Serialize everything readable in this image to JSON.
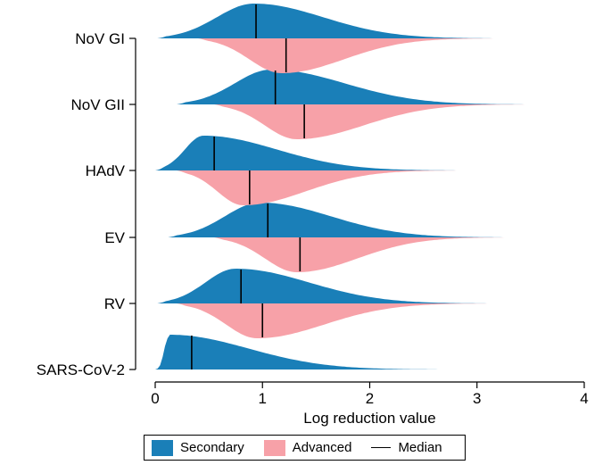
{
  "chart_data": {
    "type": "split-violin",
    "title": "",
    "xlabel": "Log reduction value",
    "ylabel": "",
    "xlim": [
      0,
      4
    ],
    "x_ticks": [
      0,
      1,
      2,
      3,
      4
    ],
    "categories": [
      "NoV GI",
      "NoV GII",
      "HAdV",
      "EV",
      "RV",
      "SARS-CoV-2"
    ],
    "series": [
      {
        "name": "Secondary",
        "color": "#1a7fb8",
        "side": "upper",
        "medians": [
          0.94,
          1.12,
          0.55,
          1.05,
          0.8,
          0.34
        ],
        "ranges": [
          [
            0.02,
            3.25
          ],
          [
            0.2,
            3.55
          ],
          [
            0.0,
            2.9
          ],
          [
            0.12,
            3.35
          ],
          [
            0.02,
            3.2
          ],
          [
            0.0,
            2.75
          ]
        ],
        "modes": [
          0.92,
          1.08,
          0.45,
          0.98,
          0.75,
          0.14
        ]
      },
      {
        "name": "Advanced",
        "color": "#f7a1a8",
        "side": "lower",
        "medians": [
          1.22,
          1.39,
          0.88,
          1.35,
          1.0,
          null
        ],
        "ranges": [
          [
            0.4,
            3.25
          ],
          [
            0.55,
            3.55
          ],
          [
            0.2,
            2.9
          ],
          [
            0.55,
            3.35
          ],
          [
            0.2,
            3.2
          ],
          null
        ],
        "modes": [
          1.18,
          1.32,
          0.82,
          1.32,
          0.95,
          null
        ]
      }
    ],
    "legend": {
      "position": "bottom",
      "entries": [
        "Secondary",
        "Advanced",
        "Median"
      ]
    }
  }
}
